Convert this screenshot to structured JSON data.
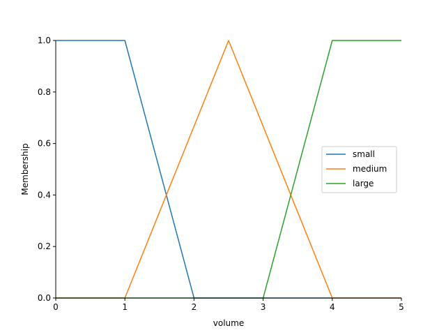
{
  "chart_data": {
    "type": "line",
    "title": "",
    "xlabel": "volume",
    "ylabel": "Membership",
    "xlim": [
      0,
      5
    ],
    "ylim": [
      0,
      1
    ],
    "xticks": [
      "0",
      "1",
      "2",
      "3",
      "4",
      "5"
    ],
    "yticks": [
      "0.0",
      "0.2",
      "0.4",
      "0.6",
      "0.8",
      "1.0"
    ],
    "grid": false,
    "legend_position": "center-right",
    "series": [
      {
        "name": "small",
        "color": "#1f77b4",
        "x": [
          0,
          1,
          2,
          5
        ],
        "y": [
          1,
          1,
          0,
          0
        ]
      },
      {
        "name": "medium",
        "color": "#ff7f0e",
        "x": [
          0,
          1,
          2.5,
          4,
          5
        ],
        "y": [
          0,
          0,
          1,
          0,
          0
        ]
      },
      {
        "name": "large",
        "color": "#2ca02c",
        "x": [
          0,
          3,
          4,
          5
        ],
        "y": [
          0,
          0,
          1,
          1
        ]
      }
    ]
  }
}
